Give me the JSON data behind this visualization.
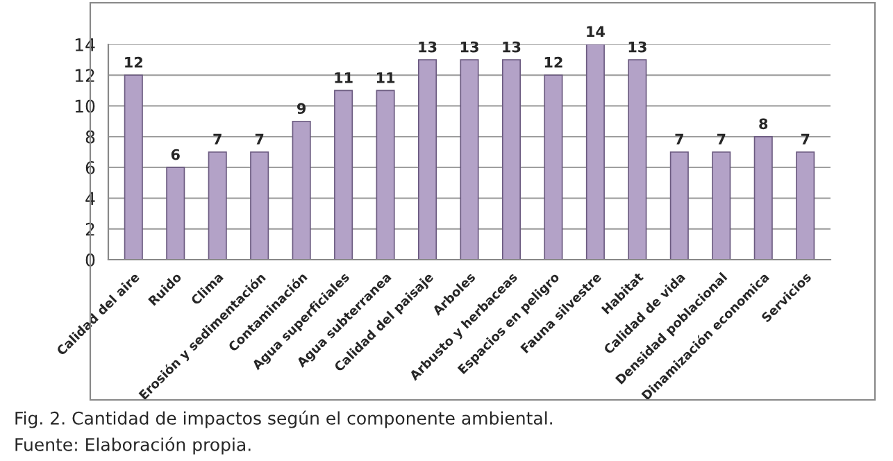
{
  "chart_data": {
    "type": "bar",
    "categories": [
      "Calidad del aire",
      "Ruido",
      "Clima",
      "Erosión y sedimentación",
      "Contaminación",
      "Agua superficiales",
      "Agua subterranea",
      "Calidad del paisaje",
      "Arboles",
      "Arbusto y herbaceas",
      "Espacios en peligro",
      "Fauna silvestre",
      "Habitat",
      "Calidad de vida",
      "Densidad poblacional",
      "Dinamización economica",
      "Servicios"
    ],
    "values": [
      12,
      6,
      7,
      7,
      9,
      11,
      11,
      13,
      13,
      13,
      12,
      14,
      13,
      7,
      7,
      8,
      7
    ],
    "color": "#b3a2c7",
    "ylim": [
      0,
      14
    ],
    "yticks": [
      0,
      2,
      4,
      6,
      8,
      10,
      12,
      14
    ],
    "grid": "y",
    "data_labels": true,
    "annotations": [
      "Fig. 2. Cantidad de impactos según el componente ambiental.",
      "Fuente: Elaboración propia."
    ]
  }
}
